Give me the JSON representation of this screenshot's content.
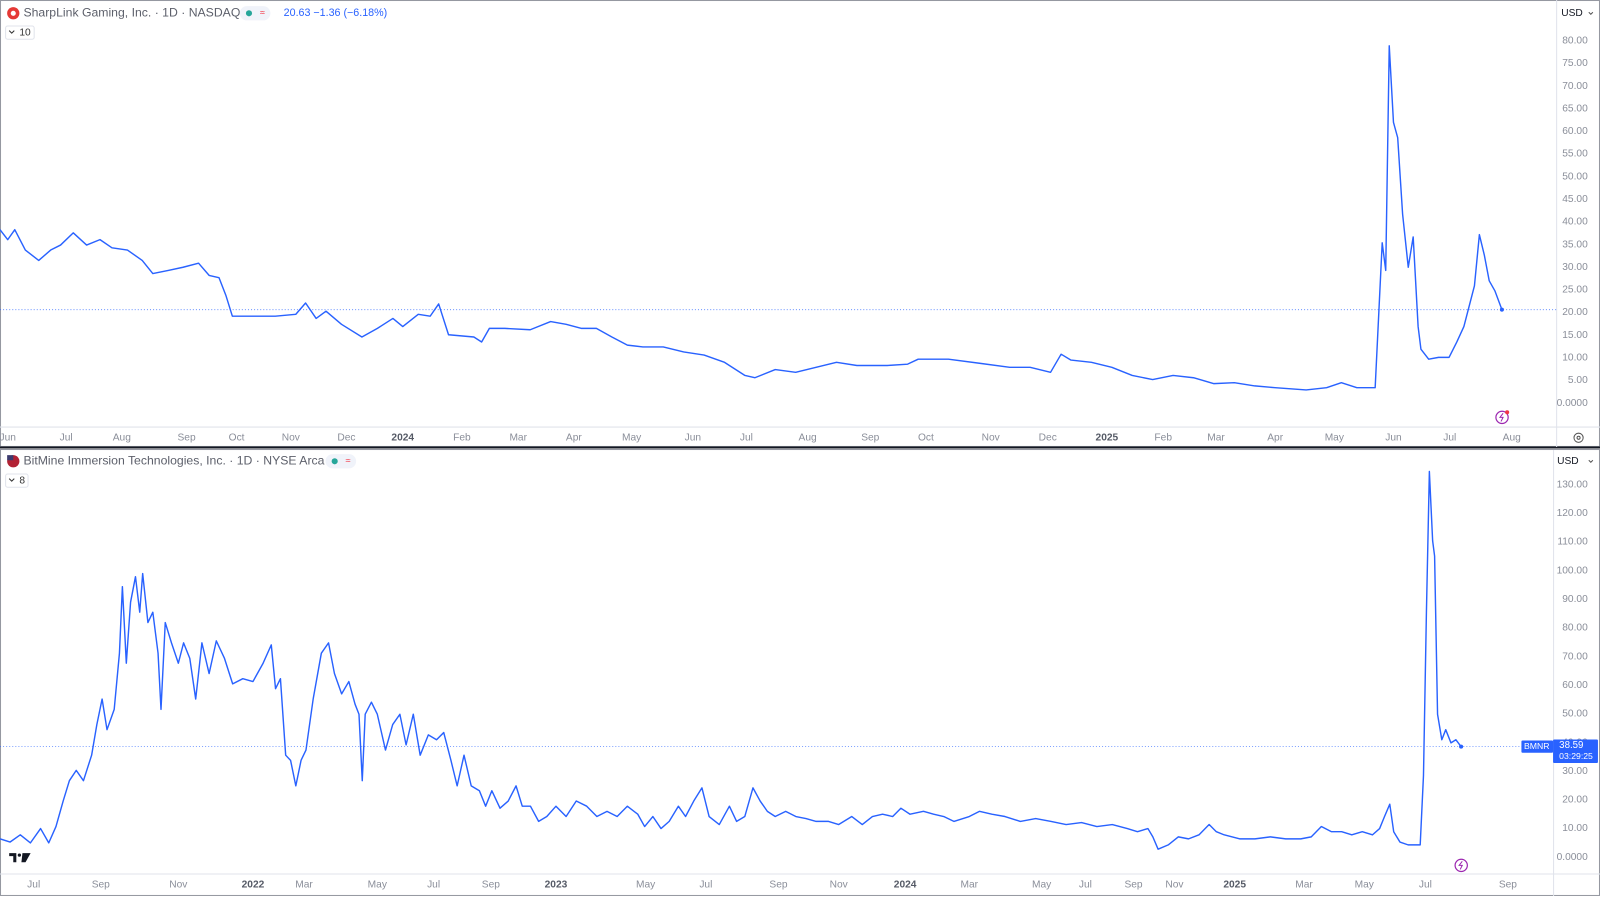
{
  "chart_data": [
    {
      "type": "line",
      "title": "SharpLink Gaming, Inc. · 1D · NASDAQ",
      "quote": "20.63 −1.36 (−6.18%)",
      "indicators": "10",
      "currency": "USD",
      "color": "#2962ff",
      "grid": false,
      "x": [
        2023.428,
        2023.439,
        2023.449,
        2023.464,
        2023.483,
        2023.5,
        2023.514,
        2023.532,
        2023.551,
        2023.57,
        2023.587,
        2023.609,
        2023.63,
        2023.645,
        2023.667,
        2023.688,
        2023.71,
        2023.725,
        2023.739,
        2023.749,
        2023.758,
        2023.783,
        2023.819,
        2023.848,
        2023.862,
        2023.877,
        2023.891,
        2023.913,
        2023.942,
        2023.964,
        2023.986,
        2024.0,
        2024.022,
        2024.039,
        2024.051,
        2024.065,
        2024.101,
        2024.112,
        2024.123,
        2024.145,
        2024.181,
        2024.21,
        2024.232,
        2024.254,
        2024.275,
        2024.297,
        2024.319,
        2024.341,
        2024.37,
        2024.399,
        2024.428,
        2024.457,
        2024.486,
        2024.5,
        2024.529,
        2024.558,
        2024.587,
        2024.616,
        2024.645,
        2024.688,
        2024.717,
        2024.732,
        2024.775,
        2024.819,
        2024.862,
        2024.891,
        2024.92,
        2024.935,
        2024.949,
        2024.978,
        2025.007,
        2025.036,
        2025.065,
        2025.094,
        2025.123,
        2025.152,
        2025.181,
        2025.21,
        2025.239,
        2025.283,
        2025.312,
        2025.333,
        2025.355,
        2025.381,
        2025.391,
        2025.396,
        2025.401,
        2025.407,
        2025.413,
        2025.42,
        2025.428,
        2025.435,
        2025.442,
        2025.446,
        2025.457,
        2025.471,
        2025.486,
        2025.497,
        2025.507,
        2025.522,
        2025.529,
        2025.536,
        2025.543,
        2025.551,
        2025.561
      ],
      "values": [
        38.3,
        36.1,
        38.3,
        33.8,
        31.5,
        33.8,
        34.9,
        37.6,
        34.9,
        36.1,
        34.3,
        33.8,
        31.5,
        28.6,
        29.3,
        30.0,
        30.9,
        28.2,
        27.7,
        23.7,
        19.2,
        19.2,
        19.2,
        19.6,
        22.1,
        18.7,
        20.3,
        17.4,
        14.6,
        16.5,
        18.7,
        16.9,
        19.6,
        19.2,
        21.9,
        15.1,
        14.6,
        13.5,
        16.5,
        16.5,
        16.2,
        18.0,
        17.4,
        16.5,
        16.5,
        14.6,
        12.8,
        12.4,
        12.4,
        11.3,
        10.6,
        9.0,
        6.1,
        5.6,
        7.4,
        6.8,
        7.9,
        9.0,
        8.3,
        8.3,
        8.6,
        9.7,
        9.7,
        8.8,
        7.9,
        7.9,
        6.8,
        10.8,
        9.5,
        9.0,
        7.9,
        6.1,
        5.2,
        6.1,
        5.6,
        4.3,
        4.5,
        3.8,
        3.4,
        2.9,
        3.4,
        4.5,
        3.4,
        3.4,
        35.4,
        29.3,
        78.9,
        62.0,
        58.6,
        41.7,
        30.0,
        36.7,
        16.9,
        11.9,
        9.7,
        10.1,
        10.1,
        13.5,
        16.9,
        25.9,
        37.2,
        32.7,
        27.0,
        24.8,
        20.63
      ],
      "xlim": [
        2023.428,
        2025.638
      ],
      "xticks": [
        {
          "value": 2023.439,
          "label": "Jun"
        },
        {
          "value": 2023.522,
          "label": "Jul"
        },
        {
          "value": 2023.601,
          "label": "Aug"
        },
        {
          "value": 2023.693,
          "label": "Sep"
        },
        {
          "value": 2023.764,
          "label": "Oct"
        },
        {
          "value": 2023.841,
          "label": "Nov"
        },
        {
          "value": 2023.92,
          "label": "Dec"
        },
        2024,
        {
          "value": 2024.084,
          "label": "Feb"
        },
        {
          "value": 2024.164,
          "label": "Mar"
        },
        {
          "value": 2024.243,
          "label": "Apr"
        },
        {
          "value": 2024.325,
          "label": "May"
        },
        {
          "value": 2024.412,
          "label": "Jun"
        },
        {
          "value": 2024.488,
          "label": "Jul"
        },
        {
          "value": 2024.575,
          "label": "Aug"
        },
        {
          "value": 2024.664,
          "label": "Sep"
        },
        {
          "value": 2024.743,
          "label": "Oct"
        },
        {
          "value": 2024.835,
          "label": "Nov"
        },
        {
          "value": 2024.916,
          "label": "Dec"
        },
        2025,
        {
          "value": 2025.08,
          "label": "Feb"
        },
        {
          "value": 2025.155,
          "label": "Mar"
        },
        {
          "value": 2025.239,
          "label": "Apr"
        },
        {
          "value": 2025.323,
          "label": "May"
        },
        {
          "value": 2025.407,
          "label": "Jun"
        },
        {
          "value": 2025.487,
          "label": "Jul"
        },
        {
          "value": 2025.575,
          "label": "Aug"
        }
      ],
      "ylim": [
        -5.18,
        88.34
      ],
      "yticks": [
        {
          "value": 0,
          "label": "0.0000"
        },
        {
          "value": 5,
          "label": "5.00"
        },
        {
          "value": 10,
          "label": "10.00"
        },
        {
          "value": 15,
          "label": "15.00"
        },
        {
          "value": 20,
          "label": "20.00"
        },
        {
          "value": 25,
          "label": "25.00"
        },
        {
          "value": 30,
          "label": "30.00"
        },
        {
          "value": 35,
          "label": "35.00"
        },
        {
          "value": 40,
          "label": "40.00"
        },
        {
          "value": 45,
          "label": "45.00"
        },
        {
          "value": 50,
          "label": "50.00"
        },
        {
          "value": 55,
          "label": "55.00"
        },
        {
          "value": 60,
          "label": "60.00"
        },
        {
          "value": 65,
          "label": "65.00"
        },
        {
          "value": 70,
          "label": "70.00"
        },
        {
          "value": 75,
          "label": "75.00"
        },
        {
          "value": 80,
          "label": "80.00"
        }
      ]
    },
    {
      "type": "line",
      "title": "BitMine Immersion Technologies, Inc. · 1D · NYSE Arca",
      "indicators": "8",
      "currency": "USD",
      "symbol": "BMNR",
      "countdown": "03:29:25",
      "color": "#2962ff",
      "grid": false,
      "x": [
        2021.227,
        2021.258,
        2021.289,
        2021.32,
        2021.351,
        2021.376,
        2021.398,
        2021.42,
        2021.439,
        2021.46,
        2021.482,
        2021.507,
        2021.523,
        2021.539,
        2021.554,
        2021.576,
        2021.592,
        2021.601,
        2021.613,
        2021.626,
        2021.641,
        2021.654,
        2021.663,
        2021.679,
        2021.694,
        2021.71,
        2021.719,
        2021.732,
        2021.751,
        2021.772,
        2021.788,
        2021.807,
        2021.825,
        2021.844,
        2021.866,
        2021.888,
        2021.913,
        2021.938,
        2021.969,
        2022.0,
        2022.031,
        2022.056,
        2022.069,
        2022.084,
        2022.1,
        2022.115,
        2022.131,
        2022.147,
        2022.162,
        2022.184,
        2022.209,
        2022.231,
        2022.249,
        2022.271,
        2022.293,
        2022.312,
        2022.324,
        2022.334,
        2022.343,
        2022.362,
        2022.38,
        2022.405,
        2022.427,
        2022.449,
        2022.468,
        2022.49,
        2022.511,
        2022.536,
        2022.561,
        2022.583,
        2022.605,
        2022.624,
        2022.645,
        2022.667,
        2022.692,
        2022.711,
        2022.73,
        2022.755,
        2022.78,
        2022.804,
        2022.823,
        2022.848,
        2022.873,
        2022.898,
        2022.926,
        2022.957,
        2022.988,
        2023.02,
        2023.051,
        2023.082,
        2023.113,
        2023.144,
        2023.176,
        2023.197,
        2023.222,
        2023.247,
        2023.272,
        2023.3,
        2023.322,
        2023.347,
        2023.372,
        2023.394,
        2023.425,
        2023.456,
        2023.478,
        2023.503,
        2023.528,
        2023.55,
        2023.572,
        2023.596,
        2023.628,
        2023.659,
        2023.69,
        2023.721,
        2023.759,
        2023.79,
        2023.83,
        2023.862,
        2023.893,
        2023.924,
        2023.955,
        2023.98,
        2024.008,
        2024.049,
        2024.08,
        2024.111,
        2024.142,
        2024.189,
        2024.22,
        2024.258,
        2024.298,
        2024.345,
        2024.392,
        2024.439,
        2024.485,
        2024.532,
        2024.579,
        2024.626,
        2024.672,
        2024.703,
        2024.735,
        2024.75,
        2024.766,
        2024.797,
        2024.828,
        2024.859,
        2024.891,
        2024.922,
        2024.944,
        2024.968,
        2025.015,
        2025.062,
        2025.109,
        2025.156,
        2025.202,
        2025.234,
        2025.265,
        2025.296,
        2025.327,
        2025.358,
        2025.39,
        2025.421,
        2025.443,
        2025.458,
        2025.474,
        2025.486,
        2025.505,
        2025.53,
        2025.567,
        2025.577,
        2025.586,
        2025.595,
        2025.605,
        2025.611,
        2025.62,
        2025.633,
        2025.645,
        2025.661,
        2025.676,
        2025.692
      ],
      "values": [
        6.4,
        5.3,
        7.8,
        5.0,
        10.0,
        5.0,
        10.7,
        19.6,
        26.7,
        30.3,
        26.7,
        35.6,
        46.3,
        55.2,
        44.5,
        51.6,
        71.2,
        94.4,
        67.7,
        89.0,
        97.9,
        85.5,
        99.0,
        81.9,
        85.5,
        71.2,
        51.6,
        81.9,
        74.8,
        67.7,
        74.8,
        69.4,
        55.2,
        74.8,
        64.1,
        75.5,
        69.4,
        60.5,
        62.3,
        61.3,
        67.7,
        74.1,
        58.8,
        62.3,
        35.6,
        33.8,
        24.9,
        33.8,
        37.4,
        55.2,
        71.2,
        74.8,
        64.1,
        57.0,
        61.3,
        53.4,
        49.9,
        26.7,
        49.9,
        54.1,
        49.9,
        37.4,
        46.3,
        49.9,
        39.2,
        49.9,
        35.6,
        42.7,
        41.0,
        43.5,
        33.8,
        24.9,
        35.6,
        24.9,
        23.2,
        17.8,
        23.2,
        17.1,
        19.6,
        24.9,
        17.8,
        17.8,
        12.5,
        14.2,
        17.8,
        14.2,
        19.6,
        17.8,
        14.2,
        16.0,
        14.2,
        17.8,
        15.0,
        10.7,
        14.2,
        10.0,
        12.5,
        17.8,
        14.2,
        19.6,
        24.2,
        14.2,
        11.4,
        17.8,
        12.5,
        14.2,
        24.2,
        19.6,
        16.0,
        14.2,
        16.0,
        14.2,
        13.5,
        12.5,
        12.5,
        11.4,
        14.2,
        11.4,
        14.2,
        15.0,
        14.2,
        17.1,
        15.0,
        16.0,
        15.0,
        14.2,
        12.5,
        14.2,
        16.0,
        15.0,
        14.2,
        12.5,
        13.5,
        12.5,
        11.4,
        12.1,
        10.7,
        11.4,
        10.0,
        8.9,
        10.0,
        7.1,
        2.8,
        4.3,
        7.1,
        6.4,
        7.8,
        11.4,
        8.9,
        7.8,
        6.4,
        6.4,
        7.1,
        6.4,
        6.4,
        7.1,
        10.7,
        8.9,
        8.9,
        7.8,
        8.9,
        7.8,
        10.0,
        14.2,
        18.5,
        8.9,
        5.3,
        4.3,
        4.3,
        28.5,
        85.5,
        134.6,
        110.4,
        105.1,
        49.9,
        41.0,
        44.5,
        39.9,
        41.0,
        38.59
      ],
      "xlim": [
        2021.227,
        2025.973
      ],
      "xticks": [
        {
          "value": 2021.33,
          "label": "Jul"
        },
        {
          "value": 2021.535,
          "label": "Sep"
        },
        {
          "value": 2021.772,
          "label": "Nov"
        },
        2022,
        {
          "value": 2022.156,
          "label": "Mar"
        },
        {
          "value": 2022.38,
          "label": "May"
        },
        {
          "value": 2022.552,
          "label": "Jul"
        },
        {
          "value": 2022.727,
          "label": "Sep"
        },
        {
          "value": 2022.926,
          "label": "2023"
        },
        {
          "value": 2023.2,
          "label": "May"
        },
        {
          "value": 2023.384,
          "label": "Jul"
        },
        {
          "value": 2023.606,
          "label": "Sep"
        },
        {
          "value": 2023.79,
          "label": "Nov"
        },
        {
          "value": 2023.993,
          "label": "2024"
        },
        {
          "value": 2024.189,
          "label": "Mar"
        },
        {
          "value": 2024.41,
          "label": "May"
        },
        {
          "value": 2024.544,
          "label": "Jul"
        },
        {
          "value": 2024.691,
          "label": "Sep"
        },
        {
          "value": 2024.816,
          "label": "Nov"
        },
        2025,
        {
          "value": 2025.212,
          "label": "Mar"
        },
        {
          "value": 2025.396,
          "label": "May"
        },
        {
          "value": 2025.583,
          "label": "Jul"
        },
        {
          "value": 2025.835,
          "label": "Sep"
        }
      ],
      "ylim": [
        -5.34,
        142.1
      ],
      "yticks": [
        {
          "value": 0,
          "label": "0.0000"
        },
        {
          "value": 10,
          "label": "10.00"
        },
        {
          "value": 20,
          "label": "20.00"
        },
        {
          "value": 30,
          "label": "30.00"
        },
        {
          "value": 40,
          "label": "40.00"
        },
        {
          "value": 50,
          "label": "50.00"
        },
        {
          "value": 60,
          "label": "60.00"
        },
        {
          "value": 70,
          "label": "70.00"
        },
        {
          "value": 80,
          "label": "80.00"
        },
        {
          "value": 90,
          "label": "90.00"
        },
        {
          "value": 100,
          "label": "100.00"
        },
        {
          "value": 110,
          "label": "110.00"
        },
        {
          "value": 120,
          "label": "120.00"
        },
        {
          "value": 130,
          "label": "130.00"
        }
      ]
    }
  ]
}
